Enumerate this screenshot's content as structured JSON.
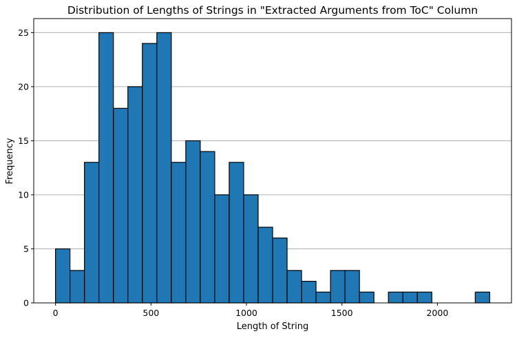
{
  "chart_data": {
    "type": "bar",
    "title": "Distribution of Lengths of Strings in \"Extracted Arguments from ToC\" Column",
    "xlabel": "Length of String",
    "ylabel": "Frequency",
    "bin_edges": [
      0,
      75.8,
      151.6,
      227.4,
      303.2,
      379,
      454.8,
      530.6,
      606.4,
      682.2,
      758,
      833.8,
      909.6,
      985.4,
      1061.2,
      1137,
      1212.8,
      1288.6,
      1364.4,
      1440.2,
      1516,
      1591.8,
      1667.6,
      1743.4,
      1819.2,
      1895,
      1970.8,
      2046.6,
      2122.4,
      2198.2,
      2274
    ],
    "values": [
      5,
      3,
      13,
      25,
      18,
      20,
      24,
      25,
      13,
      15,
      14,
      10,
      13,
      10,
      7,
      6,
      3,
      2,
      1,
      3,
      3,
      1,
      0,
      1,
      1,
      1,
      0,
      0,
      0,
      1
    ],
    "xlim": [
      -114,
      2388
    ],
    "ylim": [
      0,
      26.3
    ],
    "xticks": [
      0,
      500,
      1000,
      1500,
      2000
    ],
    "xtick_labels": [
      "0",
      "500",
      "1000",
      "1500",
      "2000"
    ],
    "yticks": [
      0,
      5,
      10,
      15,
      20,
      25
    ],
    "ytick_labels": [
      "0",
      "5",
      "10",
      "15",
      "20",
      "25"
    ],
    "grid": "y",
    "bar_color": "#1f77b4",
    "edge_color": "#000000"
  }
}
